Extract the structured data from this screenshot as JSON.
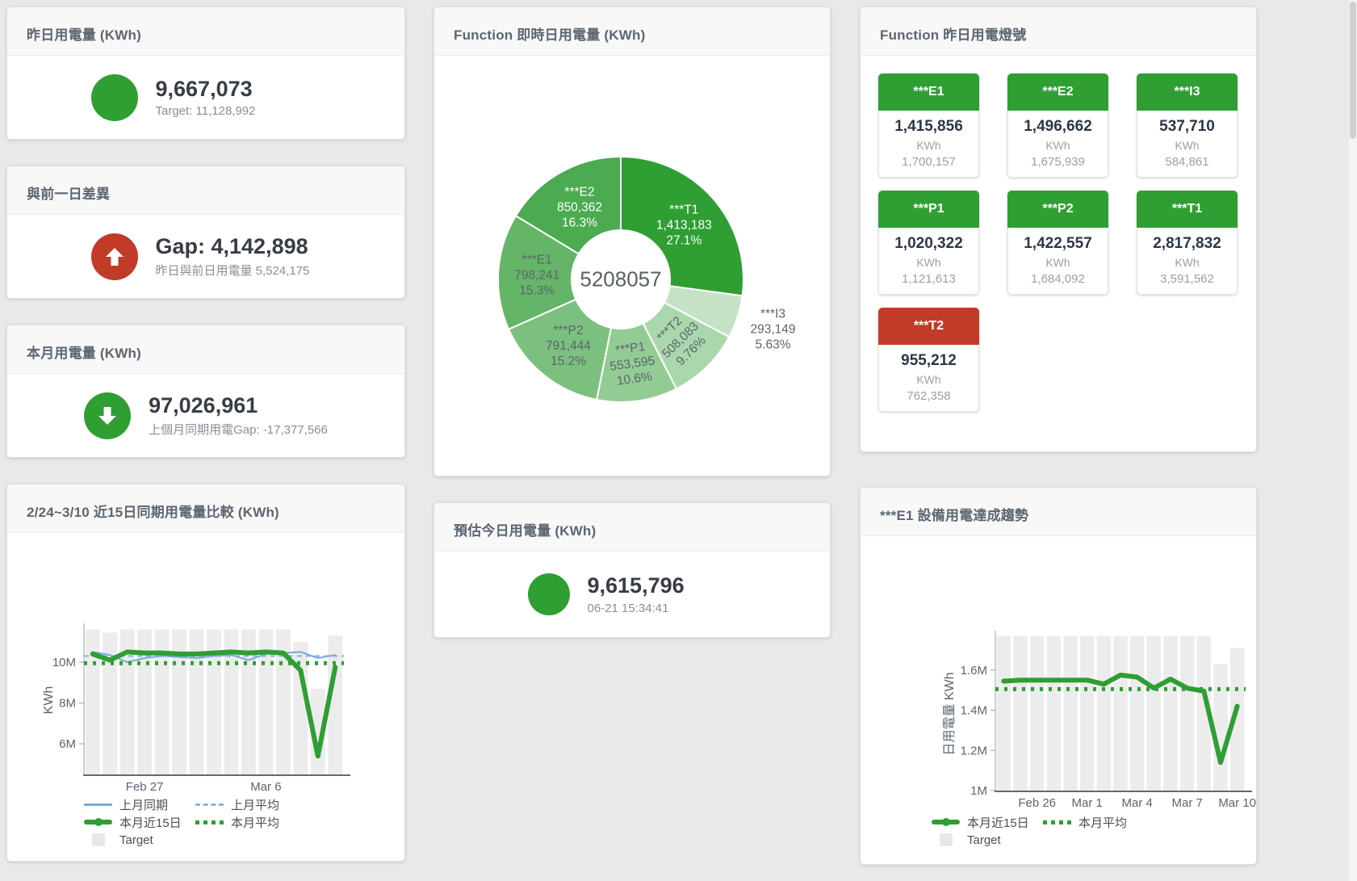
{
  "page": {
    "bg": "#e9e9e9"
  },
  "colors": {
    "green": "#2f9e33",
    "red": "#c23a28",
    "blue": "#74a8d8",
    "target_bar": "#ececec"
  },
  "cards": {
    "yesterday": {
      "title": "昨日用電量 (KWh)",
      "value": "9,667,073",
      "subtitle": "Target: 11,128,992"
    },
    "prev_day_gap": {
      "title": "與前一日差異",
      "value": "Gap: 4,142,898",
      "subtitle": "昨日與前日用電量 5,524,175"
    },
    "month": {
      "title": "本月用電量 (KWh)",
      "value": "97,026,961",
      "subtitle": "上個月同期用電Gap: -17,377,566"
    },
    "realtime_donut": {
      "title": "Function 即時日用電量 (KWh)"
    },
    "today_estimate": {
      "title": "預估今日用電量 (KWh)",
      "value": "9,615,796",
      "subtitle": "06-21 15:34:41"
    },
    "lights": {
      "title": "Function 昨日用電燈號",
      "tiles": [
        {
          "name": "***E1",
          "value": "1,415,856",
          "unit": "KWh",
          "target": "1,700,157",
          "status": "green"
        },
        {
          "name": "***E2",
          "value": "1,496,662",
          "unit": "KWh",
          "target": "1,675,939",
          "status": "green"
        },
        {
          "name": "***I3",
          "value": "537,710",
          "unit": "KWh",
          "target": "584,861",
          "status": "green"
        },
        {
          "name": "***P1",
          "value": "1,020,322",
          "unit": "KWh",
          "target": "1,121,613",
          "status": "green"
        },
        {
          "name": "***P2",
          "value": "1,422,557",
          "unit": "KWh",
          "target": "1,684,092",
          "status": "green"
        },
        {
          "name": "***T1",
          "value": "2,817,832",
          "unit": "KWh",
          "target": "3,591,562",
          "status": "green"
        },
        {
          "name": "***T2",
          "value": "955,212",
          "unit": "KWh",
          "target": "762,358",
          "status": "red"
        }
      ]
    },
    "compare15": {
      "title": "2/24~3/10 近15日同期用電量比較 (KWh)",
      "legend": [
        "上月同期",
        "上月平均",
        "本月近15日",
        "本月平均",
        "Target"
      ]
    },
    "e1_trend": {
      "title": "***E1 設備用電達成趨勢",
      "legend": [
        "本月近15日",
        "本月平均",
        "Target"
      ]
    }
  },
  "chart_data": [
    {
      "type": "pie",
      "title": "Function 即時日用電量 (KWh)",
      "center_total": "5208057",
      "slices": [
        {
          "label": "***T1",
          "value": 1413183,
          "value_text": "1,413,183",
          "pct": "27.1%",
          "color": "#2f9e33",
          "text": "#ffffff"
        },
        {
          "label": "***I3",
          "value": 293149,
          "value_text": "293,149",
          "pct": "5.63%",
          "color": "#c5e2c6",
          "text": "#5d646b",
          "outside": true
        },
        {
          "label": "***T2",
          "value": 508083,
          "value_text": "508,083",
          "pct": "9.76%",
          "color": "#abd7ad",
          "text": "#5d646b"
        },
        {
          "label": "***P1",
          "value": 553595,
          "value_text": "553,595",
          "pct": "10.6%",
          "color": "#93cb95",
          "text": "#5d646b"
        },
        {
          "label": "***P2",
          "value": 791444,
          "value_text": "791,444",
          "pct": "15.2%",
          "color": "#7cc07f",
          "text": "#5d646b"
        },
        {
          "label": "***E1",
          "value": 798241,
          "value_text": "798,241",
          "pct": "15.3%",
          "color": "#64b568",
          "text": "#5d646b"
        },
        {
          "label": "***E2",
          "value": 850362,
          "value_text": "850,362",
          "pct": "16.3%",
          "color": "#4caa50",
          "text": "#ffffff"
        }
      ]
    },
    {
      "type": "bar",
      "title": "2/24~3/10 近15日同期用電量比較 (KWh)",
      "ylabel": "KWh",
      "ylim": [
        4.5,
        11.74
      ],
      "yticks": [
        {
          "v": 6,
          "label": "6M"
        },
        {
          "v": 8,
          "label": "8M"
        },
        {
          "v": 10,
          "label": "10M"
        }
      ],
      "categories": [
        "2/24",
        "2/25",
        "2/26",
        "2/27",
        "2/28",
        "3/1",
        "3/2",
        "3/3",
        "3/4",
        "3/5",
        "3/6",
        "3/7",
        "3/8",
        "3/9",
        "3/10"
      ],
      "xticks": [
        {
          "i": 3,
          "label": "Feb 27"
        },
        {
          "i": 10,
          "label": "Mar 6"
        }
      ],
      "target_bars": [
        11.6,
        11.45,
        11.6,
        11.6,
        11.6,
        11.6,
        11.6,
        11.6,
        11.6,
        11.6,
        11.6,
        11.6,
        11.0,
        8.7,
        11.3
      ],
      "series": [
        {
          "name": "上月同期",
          "values": [
            10.5,
            10.35,
            10.0,
            10.2,
            10.3,
            10.25,
            10.2,
            10.3,
            10.35,
            10.1,
            10.4,
            10.45,
            10.5,
            10.2,
            10.35
          ],
          "color": "#74a8d8",
          "width": 2
        },
        {
          "name": "上月平均",
          "const": 10.3,
          "color": "#85b4e0",
          "width": 2,
          "dash": "6 5"
        },
        {
          "name": "本月近15日",
          "values": [
            10.4,
            10.1,
            10.5,
            10.45,
            10.45,
            10.4,
            10.4,
            10.45,
            10.5,
            10.45,
            10.5,
            10.45,
            9.6,
            5.4,
            9.75
          ],
          "color": "#2f9e33",
          "width": 6
        },
        {
          "name": "本月平均",
          "const": 9.95,
          "color": "#2f9e33",
          "width": 5,
          "dash": "4 7"
        },
        {
          "name": "Target",
          "type": "bars"
        }
      ]
    },
    {
      "type": "bar",
      "title": "***E1 設備用電達成趨勢",
      "ylabel": "日用電量 KWh",
      "ylim": [
        1.0,
        1.78
      ],
      "yticks": [
        {
          "v": 1,
          "label": "1M"
        },
        {
          "v": 1.2,
          "label": "1.2M"
        },
        {
          "v": 1.4,
          "label": "1.4M"
        },
        {
          "v": 1.6,
          "label": "1.6M"
        }
      ],
      "categories": [
        "2/24",
        "2/25",
        "2/26",
        "2/27",
        "2/28",
        "3/1",
        "3/2",
        "3/3",
        "3/4",
        "3/5",
        "3/6",
        "3/7",
        "3/8",
        "3/9",
        "3/10"
      ],
      "xticks": [
        {
          "i": 2,
          "label": "Feb 26"
        },
        {
          "i": 5,
          "label": "Mar 1"
        },
        {
          "i": 8,
          "label": "Mar 4"
        },
        {
          "i": 11,
          "label": "Mar 7"
        },
        {
          "i": 14,
          "label": "Mar 10"
        }
      ],
      "target_bars": [
        1.77,
        1.77,
        1.77,
        1.77,
        1.77,
        1.77,
        1.77,
        1.77,
        1.77,
        1.77,
        1.77,
        1.77,
        1.77,
        1.63,
        1.71
      ],
      "series": [
        {
          "name": "本月近15日",
          "values": [
            1.545,
            1.55,
            1.55,
            1.55,
            1.55,
            1.55,
            1.53,
            1.575,
            1.565,
            1.51,
            1.555,
            1.51,
            1.495,
            1.14,
            1.42
          ],
          "color": "#2f9e33",
          "width": 6
        },
        {
          "name": "本月平均",
          "const": 1.505,
          "color": "#2f9e33",
          "width": 5,
          "dash": "4 7"
        },
        {
          "name": "Target",
          "type": "bars"
        }
      ]
    }
  ]
}
